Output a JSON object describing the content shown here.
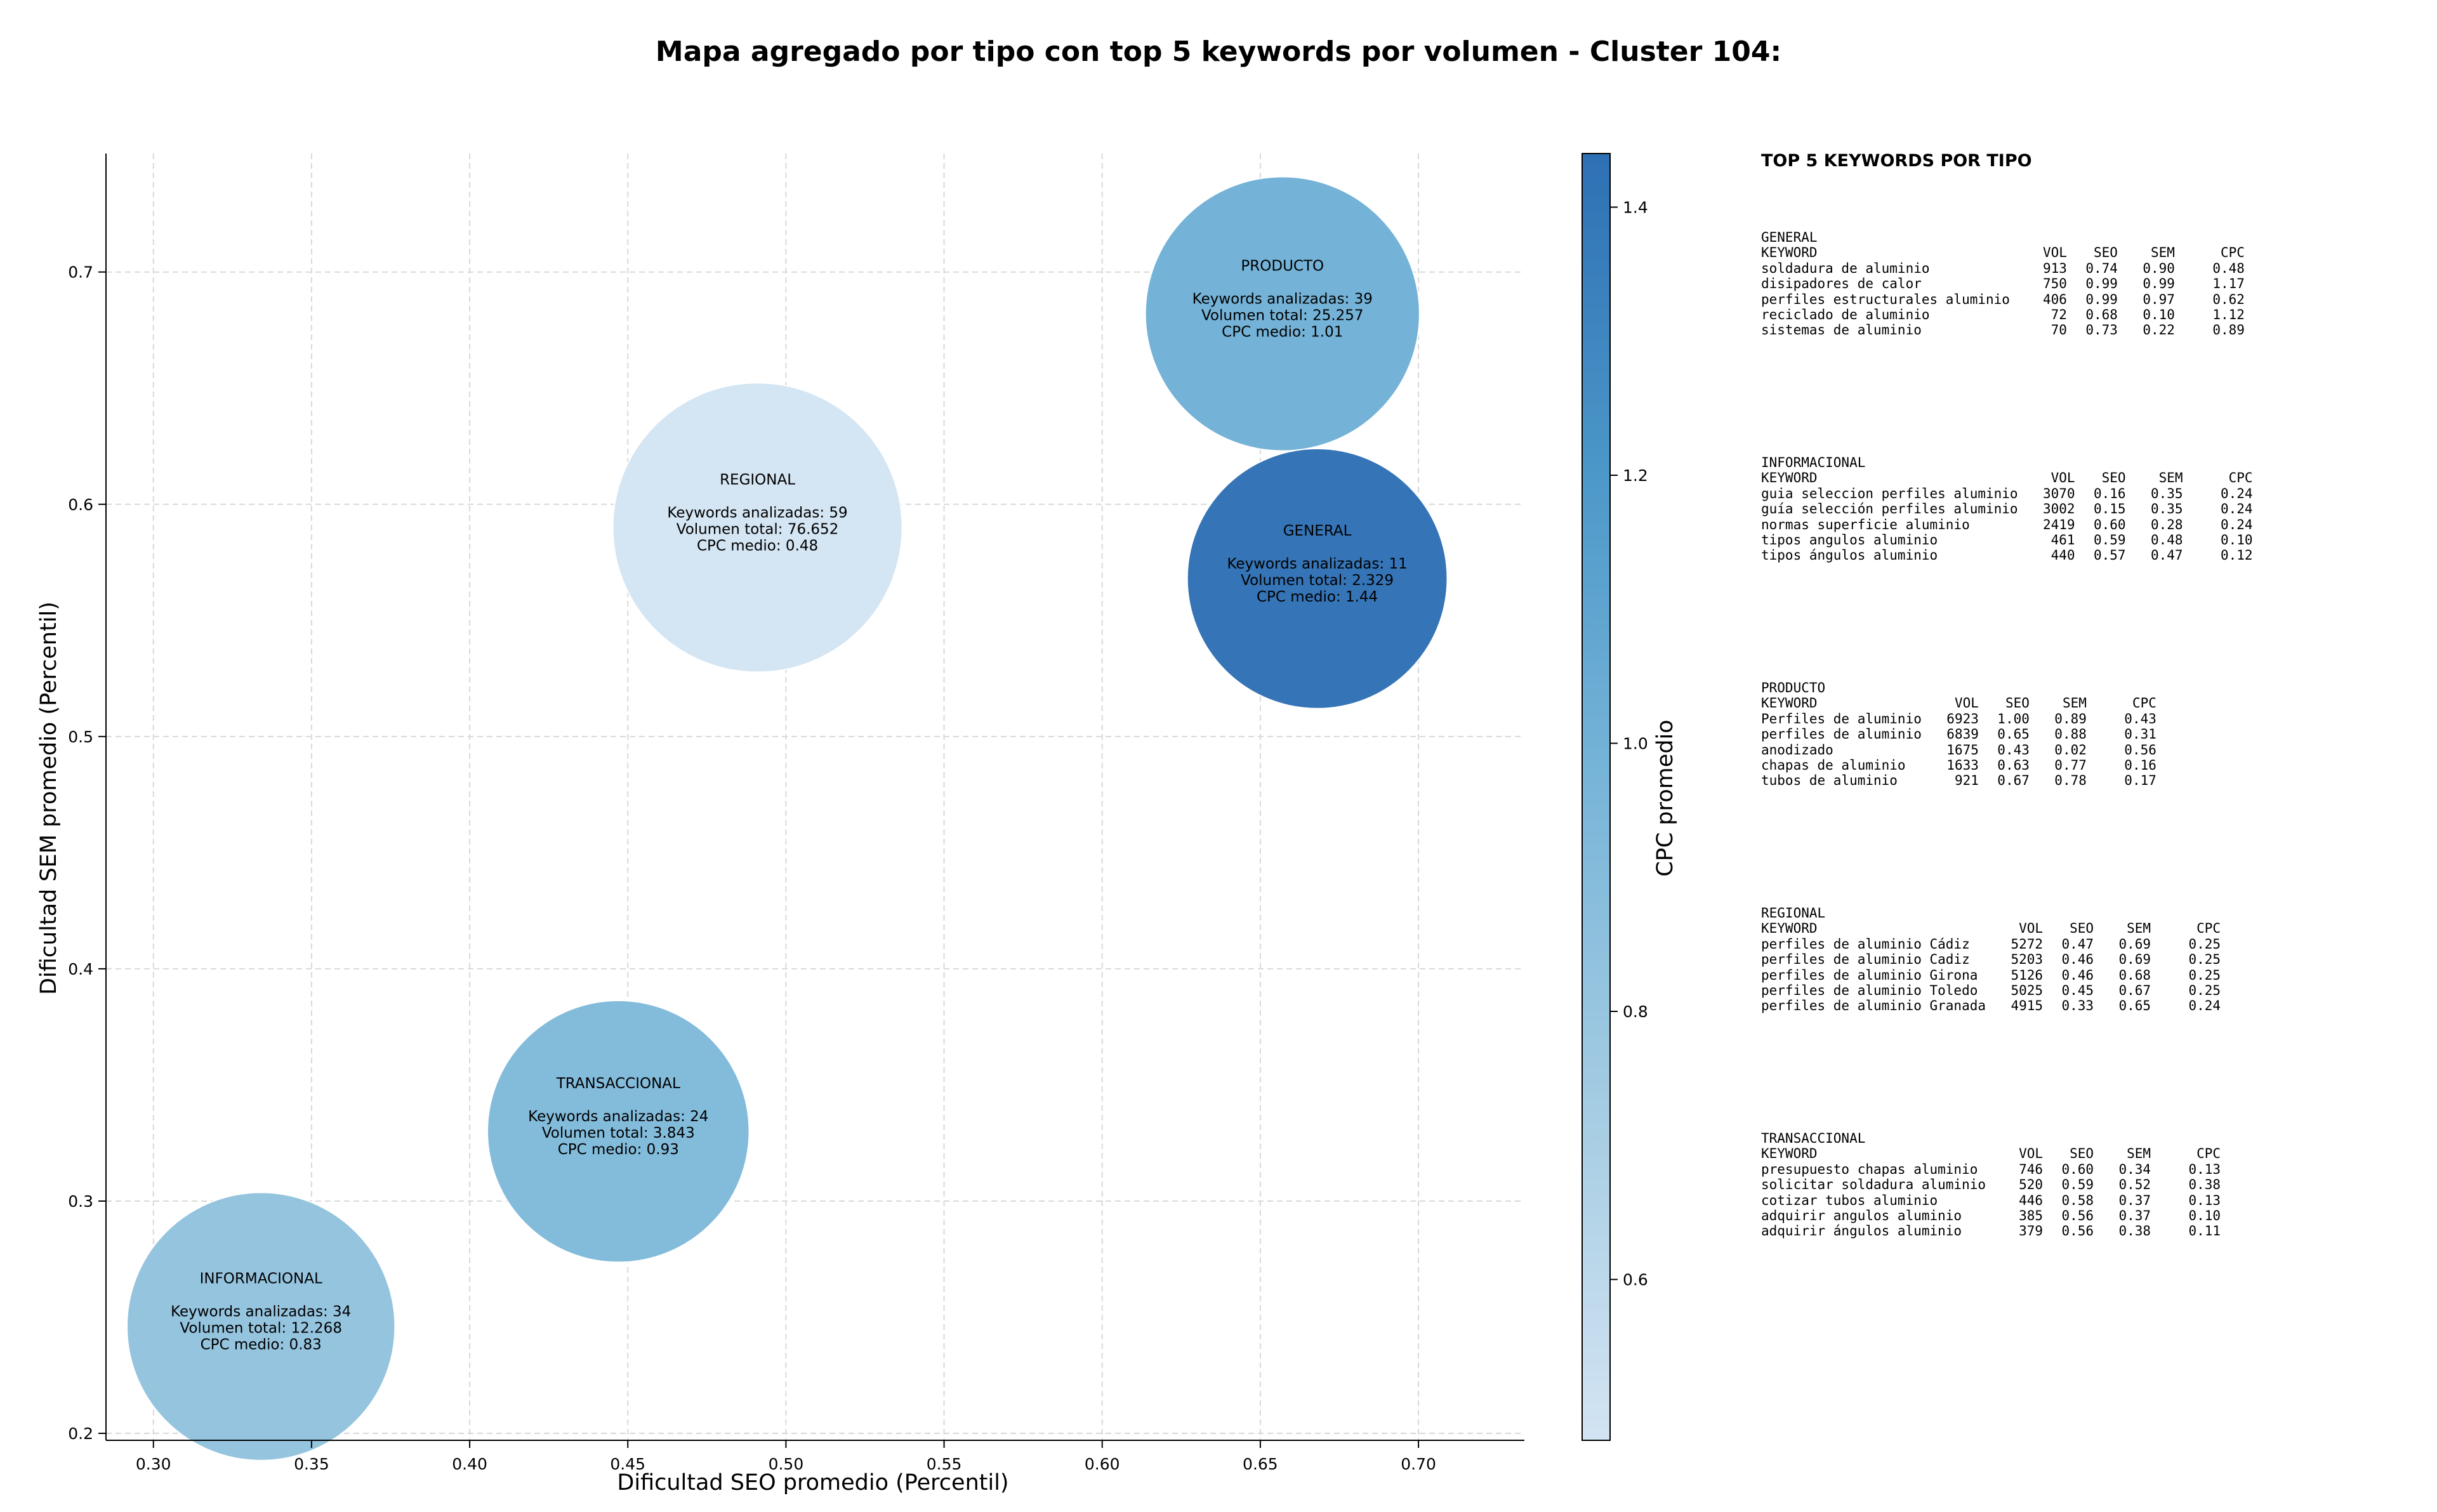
{
  "chart_data": {
    "type": "scatter",
    "title": "Mapa agregado por tipo con top 5 keywords por volumen - Cluster 104:",
    "xlabel": "Dificultad SEO promedio (Percentil)",
    "ylabel": "Dificultad SEM promedio (Percentil)",
    "xlim": [
      0.285,
      0.7335
    ],
    "ylim": [
      0.197,
      0.751
    ],
    "xticks": [
      "0.30",
      "0.35",
      "0.40",
      "0.45",
      "0.50",
      "0.55",
      "0.60",
      "0.65",
      "0.70"
    ],
    "yticks": [
      "0.2",
      "0.3",
      "0.4",
      "0.5",
      "0.6",
      "0.7"
    ],
    "grid": true,
    "colorbar": {
      "label": "CPC promedio",
      "range": [
        0.48,
        1.44
      ],
      "ticks": [
        "0.6",
        "0.8",
        "1.0",
        "1.2",
        "1.4"
      ],
      "colors": [
        "#d3e4f3",
        "#a6cde3",
        "#7ab6d9",
        "#4c98c9",
        "#2e70b4"
      ]
    },
    "points": [
      {
        "label": "PRODUCTO",
        "x": 0.657,
        "y": 0.682,
        "cpc": 1.01,
        "keywords_text": "Keywords analizadas: 39",
        "volume_text": "Volumen total: 25.257",
        "cpc_text": "CPC medio: 1.01",
        "volume": 25257
      },
      {
        "label": "REGIONAL",
        "x": 0.491,
        "y": 0.59,
        "cpc": 0.48,
        "keywords_text": "Keywords analizadas: 59",
        "volume_text": "Volumen total: 76.652",
        "cpc_text": "CPC medio: 0.48",
        "volume": 76652
      },
      {
        "label": "GENERAL",
        "x": 0.668,
        "y": 0.568,
        "cpc": 1.44,
        "keywords_text": "Keywords analizadas: 11",
        "volume_text": "Volumen total: 2.329",
        "cpc_text": "CPC medio: 1.44",
        "volume": 2329
      },
      {
        "label": "TRANSACCIONAL",
        "x": 0.447,
        "y": 0.33,
        "cpc": 0.93,
        "keywords_text": "Keywords analizadas: 24",
        "volume_text": "Volumen total: 3.843",
        "cpc_text": "CPC medio: 0.93",
        "volume": 3843
      },
      {
        "label": "INFORMACIONAL",
        "x": 0.334,
        "y": 0.246,
        "cpc": 0.83,
        "keywords_text": "Keywords analizadas: 34",
        "volume_text": "Volumen total: 12.268",
        "cpc_text": "CPC medio: 0.83",
        "volume": 12268
      }
    ]
  },
  "panel": {
    "title": "TOP 5 KEYWORDS POR TIPO",
    "headers": {
      "keyword": "KEYWORD",
      "vol": "VOL",
      "seo": "SEO",
      "sem": "SEM",
      "cpc": "CPC"
    },
    "groups": [
      {
        "type": "GENERAL",
        "rows": [
          {
            "keyword": "soldadura de aluminio",
            "vol": "913",
            "seo": "0.74",
            "sem": "0.90",
            "cpc": "0.48"
          },
          {
            "keyword": "disipadores de calor",
            "vol": "750",
            "seo": "0.99",
            "sem": "0.99",
            "cpc": "1.17"
          },
          {
            "keyword": "perfiles estructurales aluminio",
            "vol": "406",
            "seo": "0.99",
            "sem": "0.97",
            "cpc": "0.62"
          },
          {
            "keyword": "reciclado de aluminio",
            "vol": "72",
            "seo": "0.68",
            "sem": "0.10",
            "cpc": "1.12"
          },
          {
            "keyword": "sistemas de aluminio",
            "vol": "70",
            "seo": "0.73",
            "sem": "0.22",
            "cpc": "0.89"
          }
        ]
      },
      {
        "type": "INFORMACIONAL",
        "rows": [
          {
            "keyword": "guia seleccion perfiles aluminio",
            "vol": "3070",
            "seo": "0.16",
            "sem": "0.35",
            "cpc": "0.24"
          },
          {
            "keyword": "guía selección perfiles aluminio",
            "vol": "3002",
            "seo": "0.15",
            "sem": "0.35",
            "cpc": "0.24"
          },
          {
            "keyword": "normas superficie aluminio",
            "vol": "2419",
            "seo": "0.60",
            "sem": "0.28",
            "cpc": "0.24"
          },
          {
            "keyword": "tipos angulos aluminio",
            "vol": "461",
            "seo": "0.59",
            "sem": "0.48",
            "cpc": "0.10"
          },
          {
            "keyword": "tipos ángulos aluminio",
            "vol": "440",
            "seo": "0.57",
            "sem": "0.47",
            "cpc": "0.12"
          }
        ]
      },
      {
        "type": "PRODUCTO",
        "rows": [
          {
            "keyword": "Perfiles de aluminio",
            "vol": "6923",
            "seo": "1.00",
            "sem": "0.89",
            "cpc": "0.43"
          },
          {
            "keyword": "perfiles de aluminio",
            "vol": "6839",
            "seo": "0.65",
            "sem": "0.88",
            "cpc": "0.31"
          },
          {
            "keyword": "anodizado",
            "vol": "1675",
            "seo": "0.43",
            "sem": "0.02",
            "cpc": "0.56"
          },
          {
            "keyword": "chapas de aluminio",
            "vol": "1633",
            "seo": "0.63",
            "sem": "0.77",
            "cpc": "0.16"
          },
          {
            "keyword": "tubos de aluminio",
            "vol": "921",
            "seo": "0.67",
            "sem": "0.78",
            "cpc": "0.17"
          }
        ]
      },
      {
        "type": "REGIONAL",
        "rows": [
          {
            "keyword": "perfiles de aluminio Cádiz",
            "vol": "5272",
            "seo": "0.47",
            "sem": "0.69",
            "cpc": "0.25"
          },
          {
            "keyword": "perfiles de aluminio Cadiz",
            "vol": "5203",
            "seo": "0.46",
            "sem": "0.69",
            "cpc": "0.25"
          },
          {
            "keyword": "perfiles de aluminio Girona",
            "vol": "5126",
            "seo": "0.46",
            "sem": "0.68",
            "cpc": "0.25"
          },
          {
            "keyword": "perfiles de aluminio Toledo",
            "vol": "5025",
            "seo": "0.45",
            "sem": "0.67",
            "cpc": "0.25"
          },
          {
            "keyword": "perfiles de aluminio Granada",
            "vol": "4915",
            "seo": "0.33",
            "sem": "0.65",
            "cpc": "0.24"
          }
        ]
      },
      {
        "type": "TRANSACCIONAL",
        "rows": [
          {
            "keyword": "presupuesto chapas aluminio",
            "vol": "746",
            "seo": "0.60",
            "sem": "0.34",
            "cpc": "0.13"
          },
          {
            "keyword": "solicitar soldadura aluminio",
            "vol": "520",
            "seo": "0.59",
            "sem": "0.52",
            "cpc": "0.38"
          },
          {
            "keyword": "cotizar tubos aluminio",
            "vol": "446",
            "seo": "0.58",
            "sem": "0.37",
            "cpc": "0.13"
          },
          {
            "keyword": "adquirir angulos aluminio",
            "vol": "385",
            "seo": "0.56",
            "sem": "0.37",
            "cpc": "0.10"
          },
          {
            "keyword": "adquirir ángulos aluminio",
            "vol": "379",
            "seo": "0.56",
            "sem": "0.38",
            "cpc": "0.11"
          }
        ]
      }
    ]
  }
}
